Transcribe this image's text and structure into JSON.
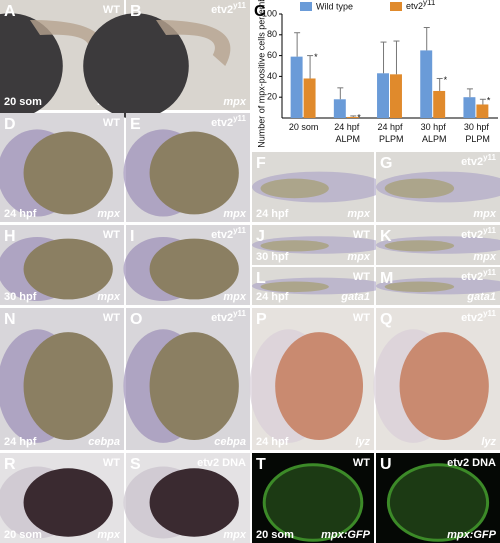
{
  "panels": [
    {
      "letter": "A",
      "genotype": "WT",
      "stage": "20 som",
      "stain": "mpx"
    },
    {
      "letter": "B",
      "genotype": {
        "text": "etv2",
        "sup": "y11"
      },
      "stage": null,
      "stain": "mpx"
    },
    {
      "letter": "D",
      "genotype": "WT",
      "stage": "24 hpf",
      "stain": "mpx"
    },
    {
      "letter": "E",
      "genotype": {
        "text": "etv2",
        "sup": "y11"
      },
      "stage": null,
      "stain": "mpx"
    },
    {
      "letter": "F",
      "genotype": null,
      "stage": "24 hpf",
      "stain": "mpx"
    },
    {
      "letter": "G",
      "genotype": {
        "text": "etv2",
        "sup": "y11"
      },
      "stage": null,
      "stain": "mpx"
    },
    {
      "letter": "H",
      "genotype": "WT",
      "stage": "30 hpf",
      "stain": "mpx"
    },
    {
      "letter": "I",
      "genotype": {
        "text": "etv2",
        "sup": "y11"
      },
      "stage": null,
      "stain": "mpx"
    },
    {
      "letter": "J",
      "genotype": "WT",
      "stage": "30 hpf",
      "stain": "mpx"
    },
    {
      "letter": "K",
      "genotype": {
        "text": "etv2",
        "sup": "y11"
      },
      "stage": null,
      "stain": "mpx"
    },
    {
      "letter": "L",
      "genotype": "WT",
      "stage": "24 hpf",
      "stain": "gata1"
    },
    {
      "letter": "M",
      "genotype": {
        "text": "etv2",
        "sup": "y11"
      },
      "stage": null,
      "stain": "gata1"
    },
    {
      "letter": "N",
      "genotype": "WT",
      "stage": "24 hpf",
      "stain": "cebpa"
    },
    {
      "letter": "O",
      "genotype": {
        "text": "etv2",
        "sup": "y11"
      },
      "stage": null,
      "stain": "cebpa"
    },
    {
      "letter": "P",
      "genotype": "WT",
      "stage": "24 hpf",
      "stain": "lyz"
    },
    {
      "letter": "Q",
      "genotype": {
        "text": "etv2",
        "sup": "y11"
      },
      "stage": null,
      "stain": "lyz"
    },
    {
      "letter": "R",
      "genotype": "WT",
      "stage": "20 som",
      "stain": "mpx"
    },
    {
      "letter": "S",
      "genotype": "etv2 DNA",
      "stage": null,
      "stain": "mpx"
    },
    {
      "letter": "T",
      "genotype": "WT",
      "stage": "20 som",
      "stain": "mpx:GFP"
    },
    {
      "letter": "U",
      "genotype": "etv2 DNA",
      "stage": null,
      "stain": "mpx:GFP"
    }
  ],
  "chart_data": {
    "type": "bar",
    "letter": "C",
    "y_label": "Number of mpx-positive cells per embryo",
    "categories": [
      "20 som",
      "24 hpf ALPM",
      "24 hpf PLPM",
      "30 hpf ALPM",
      "30 hpf PLPM"
    ],
    "series": [
      {
        "name": "Wild type",
        "color": "#6a9bd8",
        "values": [
          59,
          18,
          43,
          65,
          20
        ],
        "errors": [
          23,
          11,
          30,
          22,
          8
        ],
        "significance": [
          null,
          null,
          null,
          null,
          null
        ]
      },
      {
        "name": {
          "text": "etv2",
          "sup": "y11"
        },
        "color": "#e08a2c",
        "values": [
          38,
          1,
          42,
          26,
          13
        ],
        "errors": [
          22,
          1,
          32,
          12,
          5
        ],
        "significance": [
          "*",
          "*",
          null,
          "*",
          "*"
        ]
      }
    ],
    "ylim": [
      0,
      100
    ],
    "yticks": [
      20,
      40,
      60,
      80,
      100
    ]
  }
}
